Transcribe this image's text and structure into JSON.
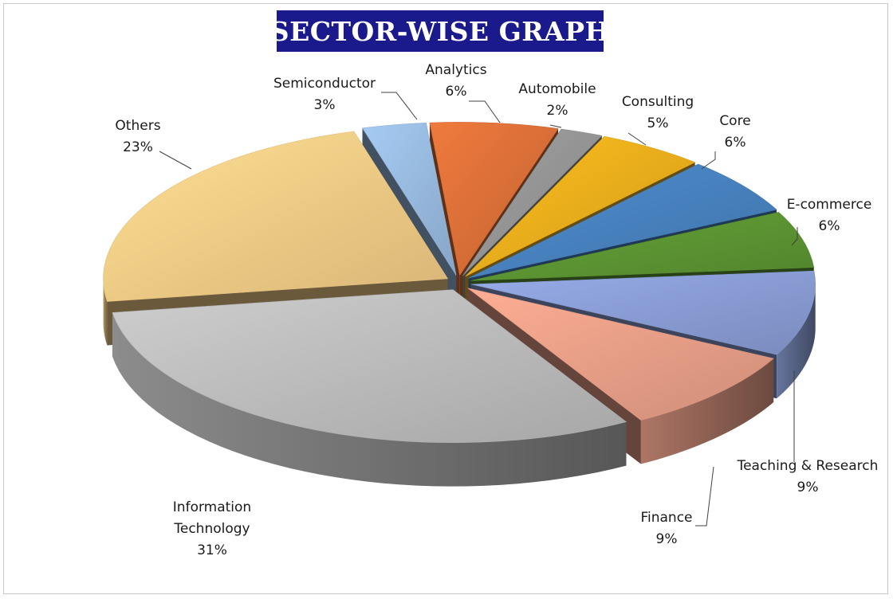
{
  "chart_data": {
    "type": "pie",
    "title": "SECTOR-WISE GRAPH",
    "slices": [
      {
        "label": "Analytics",
        "label_lines": [
          "Analytics"
        ],
        "percent_label": "6%",
        "value": 6,
        "color": "#e2733a"
      },
      {
        "label": "Automobile",
        "label_lines": [
          "Automobile"
        ],
        "percent_label": "2%",
        "value": 2,
        "color": "#9a9a9a"
      },
      {
        "label": "Consulting",
        "label_lines": [
          "Consulting"
        ],
        "percent_label": "5%",
        "value": 5,
        "color": "#f2b41c"
      },
      {
        "label": "Core",
        "label_lines": [
          "Core"
        ],
        "percent_label": "6%",
        "value": 6,
        "color": "#4a86c5"
      },
      {
        "label": "E-commerce",
        "label_lines": [
          "E-commerce"
        ],
        "percent_label": "6%",
        "value": 6,
        "color": "#5f9a34"
      },
      {
        "label": "Teaching & Research",
        "label_lines": [
          "Teaching & Research"
        ],
        "percent_label": "9%",
        "value": 9,
        "color": "#8ea2dc"
      },
      {
        "label": "Finance",
        "label_lines": [
          "Finance"
        ],
        "percent_label": "9%",
        "value": 9,
        "color": "#f0a48c"
      },
      {
        "label": "Information Technology",
        "label_lines": [
          "Information",
          "Technology"
        ],
        "percent_label": "31%",
        "value": 31,
        "color": "#c2c2c2"
      },
      {
        "label": "Others",
        "label_lines": [
          "Others"
        ],
        "percent_label": "23%",
        "value": 23,
        "color": "#fcd38a"
      },
      {
        "label": "Semiconductor",
        "label_lines": [
          "Semiconductor"
        ],
        "percent_label": "3%",
        "value": 3,
        "color": "#9dc0e6"
      }
    ],
    "style": "3d-exploded",
    "data_labels": "outside with leader lines"
  }
}
